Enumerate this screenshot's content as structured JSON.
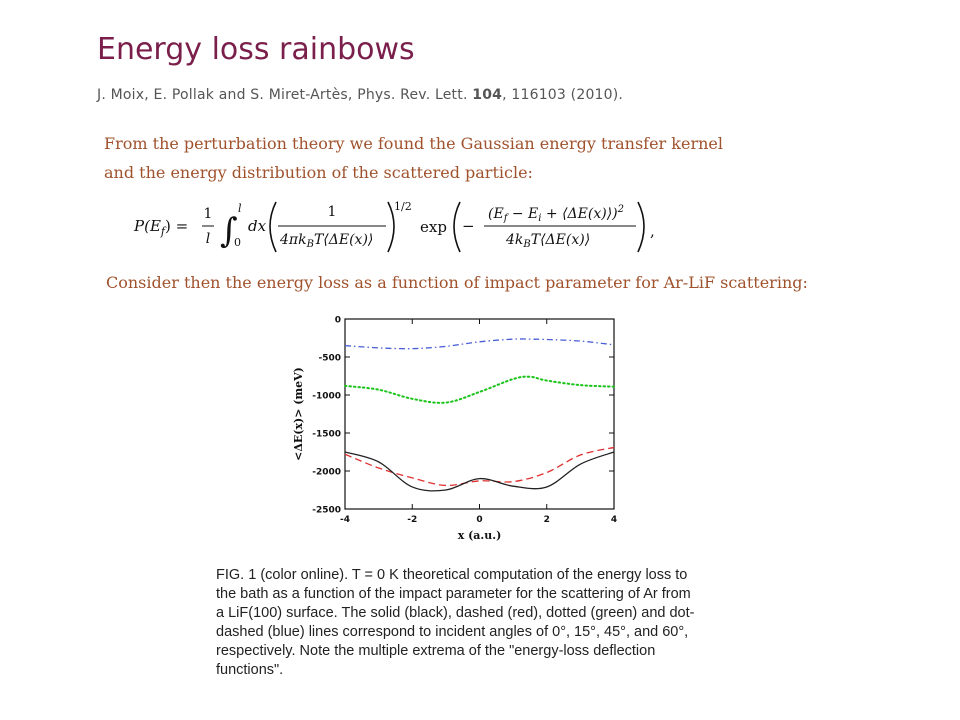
{
  "slide": {
    "title": "Energy loss rainbows",
    "citation": {
      "authors_prefix": "J. Moix, E. Pollak and S. Miret-Artès, Phys. Rev. Lett. ",
      "volume": "104",
      "suffix": ", 116103 (2010)."
    },
    "intro_line1": "From the perturbation theory we found the Gaussian energy transfer kernel",
    "intro_line2": "and the energy distribution of the scattered particle:",
    "consider_text": "Consider then the energy loss as a function of impact parameter for Ar-LiF scattering:",
    "formula": {
      "lhs": "P(E",
      "lhs_sub": "f",
      "lhs_close": ") =",
      "frac1_num": "1",
      "frac1_den": "l",
      "int_upper": "l",
      "int_lower": "0",
      "dx": "dx",
      "frac2_num": "1",
      "frac2_den": "4πk",
      "frac2_den_sub": "B",
      "frac2_den_rest": "T⟨ΔE(x)⟩",
      "power": "1/2",
      "exp": "exp",
      "minus": "−",
      "frac3_num_a": "(E",
      "frac3_num_sub1": "f",
      "frac3_num_b": " − E",
      "frac3_num_sub2": "i",
      "frac3_num_c": " + ⟨ΔE(x)⟩)",
      "frac3_num_sup": "2",
      "frac3_den_a": "4k",
      "frac3_den_sub": "B",
      "frac3_den_b": "T⟨ΔE(x)⟩",
      "comma": ","
    },
    "caption": "FIG. 1 (color online).  T = 0 K theoretical computation of the energy loss to the bath as a function of the impact parameter for the scattering of Ar from a LiF(100) surface. The solid (black), dashed (red), dotted (green) and dot-dashed (blue) lines correspond to incident angles of 0°, 15°, 45°, and 60°, respectively. Note the multiple extrema of the \"energy-loss deflection functions\"."
  },
  "chart_data": {
    "type": "line",
    "xlabel": "x (a.u.)",
    "ylabel": "<ΔE(x)> (meV)",
    "xlim": [
      -4,
      4
    ],
    "ylim": [
      -2500,
      0
    ],
    "xticks": [
      -4,
      -2,
      0,
      2,
      4
    ],
    "yticks": [
      0,
      -500,
      -1000,
      -1500,
      -2000,
      -2500
    ],
    "grid": false,
    "colors": {
      "blue": "#4a5fd6",
      "green": "#18c418",
      "red": "#e03030",
      "black": "#222222"
    },
    "series": [
      {
        "style": "dot-dashed",
        "color": "#4a5fd6",
        "x": [
          -4,
          -3,
          -2,
          -1,
          0,
          1,
          1.5,
          2,
          3,
          4
        ],
        "y": [
          -350,
          -380,
          -390,
          -360,
          -300,
          -265,
          -265,
          -270,
          -290,
          -340
        ]
      },
      {
        "style": "dotted",
        "color": "#18c418",
        "x": [
          -4,
          -3,
          -2,
          -1,
          0,
          1,
          1.5,
          2,
          3,
          4
        ],
        "y": [
          -880,
          -930,
          -1050,
          -1100,
          -960,
          -790,
          -760,
          -810,
          -870,
          -890
        ]
      },
      {
        "style": "dashed",
        "color": "#e03030",
        "x": [
          -4,
          -3,
          -2,
          -1,
          0,
          1,
          2,
          3,
          4
        ],
        "y": [
          -1780,
          -1960,
          -2090,
          -2190,
          -2130,
          -2140,
          -2020,
          -1790,
          -1690
        ]
      },
      {
        "style": "solid",
        "color": "#222222",
        "x": [
          -4,
          -3,
          -2,
          -1,
          0,
          1,
          2,
          3,
          4
        ],
        "y": [
          -1750,
          -1880,
          -2210,
          -2250,
          -2100,
          -2200,
          -2210,
          -1910,
          -1750
        ]
      }
    ]
  }
}
